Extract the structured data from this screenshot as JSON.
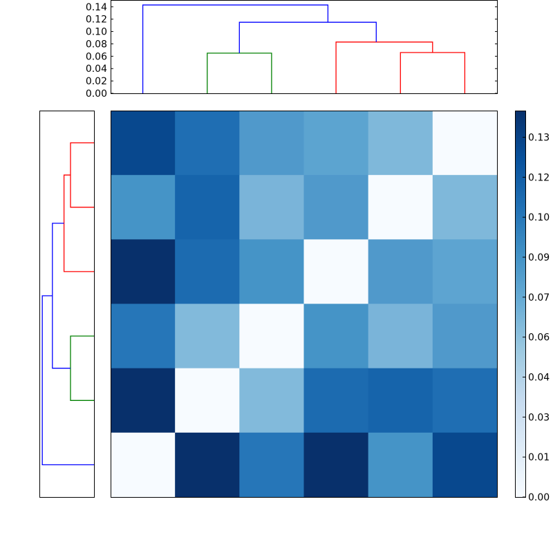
{
  "chart_data": [
    {
      "name": "top-dendrogram",
      "type": "dendrogram",
      "orientation": "top",
      "yticks": [
        "0.00",
        "0.02",
        "0.04",
        "0.06",
        "0.08",
        "0.10",
        "0.12",
        "0.14"
      ],
      "ytick_values": [
        0.0,
        0.02,
        0.04,
        0.06,
        0.08,
        0.1,
        0.12,
        0.14
      ],
      "ylim": [
        0.0,
        0.151
      ],
      "leaves": 6,
      "links": [
        {
          "x": [
            3,
            3,
            4,
            4
          ],
          "y": [
            0.0,
            0.065,
            0.065,
            0.0
          ],
          "color": "#008000"
        },
        {
          "x": [
            7,
            7,
            8,
            8
          ],
          "y": [
            0.0,
            0.066,
            0.066,
            0.0
          ],
          "color": "#ff0000"
        },
        {
          "x": [
            5,
            5,
            7.5,
            7.5
          ],
          "y": [
            0.0,
            0.083,
            0.083,
            0.066
          ],
          "color": "#ff0000"
        },
        {
          "x": [
            3.5,
            3.5,
            6.25,
            6.25
          ],
          "y": [
            0.065,
            0.115,
            0.115,
            0.083
          ],
          "color": "#0000ff"
        },
        {
          "x": [
            1,
            1,
            4.875,
            4.875
          ],
          "y": [
            0.0,
            0.143,
            0.143,
            0.115
          ],
          "color": "#0000ff"
        }
      ],
      "grid": false
    },
    {
      "name": "left-dendrogram",
      "type": "dendrogram",
      "orientation": "left",
      "leaves": 6,
      "links": [
        {
          "y": [
            1,
            1,
            2,
            2
          ],
          "x": [
            0.0,
            0.065,
            0.065,
            0.0
          ],
          "color": "#ff0000",
          "note": "top pair"
        },
        {
          "y": [
            1.5,
            1.5,
            3,
            3
          ],
          "x": [
            0.065,
            0.083,
            0.083,
            0.0
          ],
          "color": "#ff0000"
        },
        {
          "y": [
            4,
            4,
            5,
            5
          ],
          "x": [
            0.0,
            0.065,
            0.065,
            0.0
          ],
          "color": "#008000"
        },
        {
          "y": [
            2.25,
            2.25,
            4.5,
            4.5
          ],
          "x": [
            0.083,
            0.115,
            0.115,
            0.065
          ],
          "color": "#0000ff"
        },
        {
          "y": [
            3.375,
            3.375,
            6,
            6
          ],
          "x": [
            0.115,
            0.143,
            0.143,
            0.0
          ],
          "color": "#0000ff"
        }
      ],
      "ticks_visible": false
    },
    {
      "name": "heatmap",
      "type": "heatmap",
      "colormap": "Blues",
      "rows": 6,
      "cols": 6,
      "values": [
        [
          0.125,
          0.105,
          0.08,
          0.075,
          0.06,
          0.0
        ],
        [
          0.085,
          0.112,
          0.062,
          0.08,
          0.0,
          0.06
        ],
        [
          0.14,
          0.107,
          0.085,
          0.0,
          0.08,
          0.075
        ],
        [
          0.1,
          0.058,
          0.0,
          0.085,
          0.062,
          0.08
        ],
        [
          0.14,
          0.0,
          0.058,
          0.107,
          0.112,
          0.105
        ],
        [
          0.0,
          0.14,
          0.1,
          0.14,
          0.085,
          0.125
        ]
      ],
      "colors": [
        [
          "#08488e",
          "#1f6eb3",
          "#5099cb",
          "#5ca4d0",
          "#7fb8da",
          "#f7fbff"
        ],
        [
          "#4594c7",
          "#1664ab",
          "#7ab4d9",
          "#5099cb",
          "#f7fbff",
          "#7fb8da"
        ],
        [
          "#08306b",
          "#1c6bb0",
          "#4594c7",
          "#f7fbff",
          "#5099cb",
          "#5da4d1"
        ],
        [
          "#2676b8",
          "#82badb",
          "#f7fbff",
          "#4594c7",
          "#7ab4d9",
          "#5099cb"
        ],
        [
          "#08306b",
          "#f7fbff",
          "#82badb",
          "#1c6bb0",
          "#1664ab",
          "#1f6eb3"
        ],
        [
          "#f7fbff",
          "#08306b",
          "#2676b8",
          "#08306b",
          "#4594c7",
          "#08488e"
        ]
      ],
      "xticks_visible": false,
      "yticks_visible": false
    },
    {
      "name": "colorbar",
      "type": "colorbar",
      "colormap": "Blues",
      "vmin": 0.0,
      "vmax": 0.145,
      "tick_labels": [
        "0.00",
        "0.01",
        "0.03",
        "0.04",
        "0.06",
        "0.07",
        "0.09",
        "0.10",
        "0.12",
        "0.13"
      ],
      "tick_values": [
        0.0,
        0.015,
        0.03,
        0.045,
        0.06,
        0.075,
        0.09,
        0.105,
        0.12,
        0.135
      ]
    }
  ]
}
